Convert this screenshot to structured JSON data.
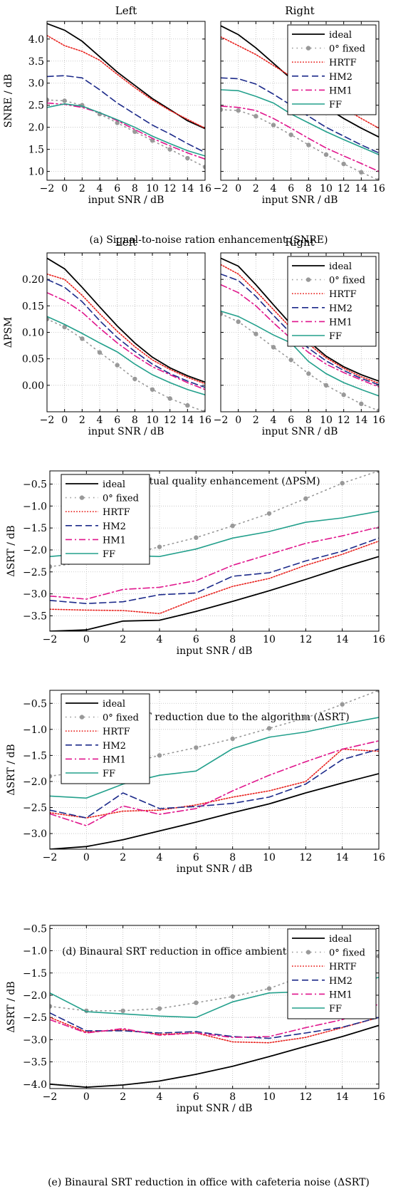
{
  "figure": {
    "captions": [
      "(a)  Signal-to-noise ration enhancement (SNRE)",
      "(b)  Perceptual quality enhancement (ΔPSM)",
      "(c)  Binaural SRT reduction due to the algorithm (ΔSRT)",
      "(d)  Binaural SRT reduction in office ambient noise (ΔSRT)",
      "(e)  Binaural SRT reduction in office with cafeteria noise (ΔSRT)"
    ]
  },
  "series_styles": [
    {
      "name": "ideal",
      "color": "#000000",
      "dash": "solid",
      "marker": false
    },
    {
      "name": "0° fixed",
      "color": "#999999",
      "dash": "dot",
      "marker": true
    },
    {
      "name": "HRTF",
      "color": "#e8201c",
      "dash": "dense-dot",
      "marker": false
    },
    {
      "name": "HM2",
      "color": "#1c2a8a",
      "dash": "dash",
      "marker": false
    },
    {
      "name": "HM1",
      "color": "#e0158c",
      "dash": "dashdot",
      "marker": false
    },
    {
      "name": "FF",
      "color": "#23a08c",
      "dash": "solid",
      "marker": false
    }
  ],
  "chart_data": [
    {
      "type": "line",
      "panel": "a-left",
      "title": "Left",
      "xlabel": "input SNR / dB",
      "ylabel": "SNRE / dB",
      "x": [
        -2,
        0,
        2,
        4,
        6,
        8,
        10,
        12,
        14,
        16
      ],
      "xlim": [
        -2,
        16
      ],
      "ylim": [
        0.8,
        4.4
      ],
      "xticks": [
        "−2",
        "0",
        "2",
        "4",
        "6",
        "8",
        "10",
        "12",
        "14",
        "16"
      ],
      "yticks": [
        "1.0",
        "1.5",
        "2.0",
        "2.5",
        "3.0",
        "3.5",
        "4.0"
      ],
      "yticks_values": [
        1.0,
        1.5,
        2.0,
        2.5,
        3.0,
        3.5,
        4.0
      ],
      "grid": true,
      "legend": null,
      "series": [
        {
          "name": "ideal",
          "values": [
            4.35,
            4.2,
            3.95,
            3.6,
            3.25,
            2.95,
            2.65,
            2.4,
            2.15,
            1.97
          ]
        },
        {
          "name": "0° fixed",
          "values": [
            2.62,
            2.6,
            2.5,
            2.3,
            2.1,
            1.9,
            1.7,
            1.5,
            1.3,
            1.1
          ]
        },
        {
          "name": "HRTF",
          "values": [
            4.08,
            3.85,
            3.72,
            3.52,
            3.2,
            2.9,
            2.62,
            2.38,
            2.18,
            1.98
          ]
        },
        {
          "name": "HM2",
          "values": [
            3.15,
            3.17,
            3.12,
            2.85,
            2.55,
            2.3,
            2.05,
            1.85,
            1.63,
            1.43
          ]
        },
        {
          "name": "HM1",
          "values": [
            2.55,
            2.52,
            2.45,
            2.33,
            2.15,
            1.95,
            1.75,
            1.58,
            1.42,
            1.28
          ]
        },
        {
          "name": "FF",
          "values": [
            2.45,
            2.53,
            2.48,
            2.33,
            2.17,
            2.0,
            1.8,
            1.63,
            1.47,
            1.35
          ]
        }
      ]
    },
    {
      "type": "line",
      "panel": "a-right",
      "title": "Right",
      "xlabel": "input SNR / dB",
      "ylabel": "",
      "x": [
        -2,
        0,
        2,
        4,
        6,
        8,
        10,
        12,
        14,
        16
      ],
      "xlim": [
        -2,
        16
      ],
      "ylim": [
        0.8,
        4.4
      ],
      "xticks": [
        "−2",
        "0",
        "2",
        "4",
        "6",
        "8",
        "10",
        "12",
        "14",
        "16"
      ],
      "yticks": [],
      "yticks_values": [
        1.0,
        1.5,
        2.0,
        2.5,
        3.0,
        3.5,
        4.0
      ],
      "grid": true,
      "legend": "top-right",
      "series": [
        {
          "name": "ideal",
          "values": [
            4.3,
            4.1,
            3.8,
            3.45,
            3.1,
            2.75,
            2.45,
            2.2,
            1.98,
            1.78
          ]
        },
        {
          "name": "0° fixed",
          "values": [
            2.4,
            2.38,
            2.25,
            2.05,
            1.83,
            1.6,
            1.38,
            1.17,
            0.98,
            0.8
          ]
        },
        {
          "name": "HRTF",
          "values": [
            4.05,
            3.85,
            3.65,
            3.4,
            3.15,
            2.9,
            2.65,
            2.43,
            2.2,
            1.98
          ]
        },
        {
          "name": "HM2",
          "values": [
            3.12,
            3.1,
            2.98,
            2.75,
            2.5,
            2.25,
            2.0,
            1.8,
            1.6,
            1.42
          ]
        },
        {
          "name": "HM1",
          "values": [
            2.48,
            2.45,
            2.38,
            2.2,
            1.98,
            1.75,
            1.53,
            1.35,
            1.18,
            1.0
          ]
        },
        {
          "name": "FF",
          "values": [
            2.85,
            2.83,
            2.7,
            2.55,
            2.3,
            2.1,
            1.9,
            1.72,
            1.55,
            1.38
          ]
        }
      ]
    },
    {
      "type": "line",
      "panel": "b-left",
      "title": "Left",
      "xlabel": "input SNR / dB",
      "ylabel": "ΔPSM",
      "x": [
        -2,
        0,
        2,
        4,
        6,
        8,
        10,
        12,
        14,
        16
      ],
      "xlim": [
        -2,
        16
      ],
      "ylim": [
        -0.05,
        0.25
      ],
      "xticks": [
        "−2",
        "0",
        "2",
        "4",
        "6",
        "8",
        "10",
        "12",
        "14",
        "16"
      ],
      "yticks": [
        "0.00",
        "0.05",
        "0.10",
        "0.15",
        "0.20"
      ],
      "yticks_values": [
        0.0,
        0.05,
        0.1,
        0.15,
        0.2
      ],
      "grid": true,
      "legend": null,
      "series": [
        {
          "name": "ideal",
          "values": [
            0.24,
            0.22,
            0.185,
            0.148,
            0.112,
            0.08,
            0.053,
            0.033,
            0.018,
            0.006
          ]
        },
        {
          "name": "0° fixed",
          "values": [
            0.125,
            0.11,
            0.088,
            0.062,
            0.038,
            0.012,
            -0.008,
            -0.025,
            -0.038,
            -0.05
          ]
        },
        {
          "name": "HRTF",
          "values": [
            0.21,
            0.2,
            0.17,
            0.135,
            0.102,
            0.073,
            0.048,
            0.03,
            0.015,
            0.003
          ]
        },
        {
          "name": "HM2",
          "values": [
            0.2,
            0.185,
            0.158,
            0.122,
            0.09,
            0.064,
            0.04,
            0.022,
            0.008,
            -0.004
          ]
        },
        {
          "name": "HM1",
          "values": [
            0.175,
            0.16,
            0.138,
            0.108,
            0.08,
            0.056,
            0.035,
            0.02,
            0.005,
            -0.008
          ]
        },
        {
          "name": "FF",
          "values": [
            0.13,
            0.115,
            0.098,
            0.08,
            0.063,
            0.04,
            0.02,
            0.005,
            -0.008,
            -0.018
          ]
        }
      ]
    },
    {
      "type": "line",
      "panel": "b-right",
      "title": "Right",
      "xlabel": "input SNR / dB",
      "ylabel": "",
      "x": [
        -2,
        0,
        2,
        4,
        6,
        8,
        10,
        12,
        14,
        16
      ],
      "xlim": [
        -2,
        16
      ],
      "ylim": [
        -0.05,
        0.25
      ],
      "xticks": [
        "−2",
        "0",
        "2",
        "4",
        "6",
        "8",
        "10",
        "12",
        "14",
        "16"
      ],
      "yticks": [],
      "yticks_values": [
        0.0,
        0.05,
        0.1,
        0.15,
        0.2
      ],
      "grid": true,
      "legend": "top-right",
      "series": [
        {
          "name": "ideal",
          "values": [
            0.24,
            0.225,
            0.19,
            0.152,
            0.115,
            0.083,
            0.055,
            0.035,
            0.02,
            0.008
          ]
        },
        {
          "name": "0° fixed",
          "values": [
            0.135,
            0.12,
            0.097,
            0.072,
            0.048,
            0.022,
            0.0,
            -0.018,
            -0.035,
            -0.048
          ]
        },
        {
          "name": "HRTF",
          "values": [
            0.228,
            0.21,
            0.178,
            0.143,
            0.108,
            0.078,
            0.052,
            0.032,
            0.016,
            0.004
          ]
        },
        {
          "name": "HM2",
          "values": [
            0.21,
            0.198,
            0.168,
            0.132,
            0.098,
            0.07,
            0.046,
            0.028,
            0.013,
            0.001
          ]
        },
        {
          "name": "HM1",
          "values": [
            0.19,
            0.175,
            0.15,
            0.118,
            0.088,
            0.062,
            0.04,
            0.024,
            0.01,
            -0.003
          ]
        },
        {
          "name": "FF",
          "values": [
            0.14,
            0.13,
            0.113,
            0.095,
            0.08,
            0.045,
            0.022,
            0.005,
            -0.008,
            -0.02
          ]
        }
      ]
    },
    {
      "type": "line",
      "panel": "c",
      "xlabel": "input SNR / dB",
      "ylabel": "ΔSRT / dB",
      "x": [
        -2,
        0,
        2,
        4,
        6,
        8,
        10,
        12,
        14,
        16
      ],
      "xlim": [
        -2,
        16
      ],
      "ylim": [
        -3.85,
        -0.2
      ],
      "xticks": [
        "−2",
        "0",
        "2",
        "4",
        "6",
        "8",
        "10",
        "12",
        "14",
        "16"
      ],
      "yticks": [
        "−3.5",
        "−3.0",
        "−2.5",
        "−2.0",
        "−1.5",
        "−1.0",
        "−0.5"
      ],
      "yticks_values": [
        -3.5,
        -3.0,
        -2.5,
        -2.0,
        -1.5,
        -1.0,
        -0.5
      ],
      "grid": true,
      "legend": "top-left",
      "series": [
        {
          "name": "ideal",
          "values": [
            -3.85,
            -3.82,
            -3.62,
            -3.6,
            -3.4,
            -3.17,
            -2.93,
            -2.67,
            -2.4,
            -2.15
          ]
        },
        {
          "name": "0° fixed",
          "values": [
            -2.38,
            -2.28,
            -2.13,
            -1.93,
            -1.72,
            -1.45,
            -1.17,
            -0.83,
            -0.48,
            -0.2
          ]
        },
        {
          "name": "HRTF",
          "values": [
            -3.35,
            -3.37,
            -3.38,
            -3.45,
            -3.12,
            -2.83,
            -2.65,
            -2.35,
            -2.1,
            -1.8
          ]
        },
        {
          "name": "HM2",
          "values": [
            -3.15,
            -3.22,
            -3.18,
            -3.02,
            -2.98,
            -2.6,
            -2.52,
            -2.25,
            -2.03,
            -1.73
          ]
        },
        {
          "name": "HM1",
          "values": [
            -3.05,
            -3.12,
            -2.9,
            -2.85,
            -2.7,
            -2.35,
            -2.1,
            -1.85,
            -1.68,
            -1.48
          ]
        },
        {
          "name": "FF",
          "values": [
            -2.15,
            -2.08,
            -2.12,
            -2.15,
            -1.98,
            -1.73,
            -1.58,
            -1.37,
            -1.27,
            -1.12
          ]
        }
      ]
    },
    {
      "type": "line",
      "panel": "d",
      "xlabel": "input SNR / dB",
      "ylabel": "ΔSRT / dB",
      "x": [
        -2,
        0,
        2,
        4,
        6,
        8,
        10,
        12,
        14,
        16
      ],
      "xlim": [
        -2,
        16
      ],
      "ylim": [
        -3.3,
        -0.25
      ],
      "xticks": [
        "−2",
        "0",
        "2",
        "4",
        "6",
        "8",
        "10",
        "12",
        "14",
        "16"
      ],
      "yticks": [
        "−3.0",
        "−2.5",
        "−2.0",
        "−1.5",
        "−1.0",
        "−0.5"
      ],
      "yticks_values": [
        -3.0,
        -2.5,
        -2.0,
        -1.5,
        -1.0,
        -0.5
      ],
      "grid": true,
      "legend": "top-left",
      "series": [
        {
          "name": "ideal",
          "values": [
            -3.3,
            -3.25,
            -3.12,
            -2.95,
            -2.78,
            -2.6,
            -2.43,
            -2.22,
            -2.03,
            -1.85
          ]
        },
        {
          "name": "0° fixed",
          "values": [
            -1.9,
            -1.8,
            -1.67,
            -1.5,
            -1.35,
            -1.18,
            -0.98,
            -0.78,
            -0.52,
            -0.25
          ]
        },
        {
          "name": "HRTF",
          "values": [
            -2.6,
            -2.7,
            -2.57,
            -2.55,
            -2.45,
            -2.3,
            -2.18,
            -2.0,
            -1.38,
            -1.42
          ]
        },
        {
          "name": "HM2",
          "values": [
            -2.55,
            -2.7,
            -2.22,
            -2.52,
            -2.48,
            -2.42,
            -2.3,
            -2.05,
            -1.58,
            -1.38
          ]
        },
        {
          "name": "HM1",
          "values": [
            -2.62,
            -2.85,
            -2.47,
            -2.63,
            -2.52,
            -2.18,
            -1.88,
            -1.62,
            -1.38,
            -1.22
          ]
        },
        {
          "name": "FF",
          "values": [
            -2.28,
            -2.32,
            -2.05,
            -1.88,
            -1.8,
            -1.37,
            -1.15,
            -1.05,
            -0.9,
            -0.77
          ]
        }
      ]
    },
    {
      "type": "line",
      "panel": "e",
      "xlabel": "input SNR / dB",
      "ylabel": "ΔSRT / dB",
      "x": [
        -2,
        0,
        2,
        4,
        6,
        8,
        10,
        12,
        14,
        16
      ],
      "xlim": [
        -2,
        16
      ],
      "ylim": [
        -4.1,
        -0.43
      ],
      "xticks": [
        "−2",
        "0",
        "2",
        "4",
        "6",
        "8",
        "10",
        "12",
        "14",
        "16"
      ],
      "yticks": [
        "−4.0",
        "−3.5",
        "−3.0",
        "−2.5",
        "−2.0",
        "−1.5",
        "−1.0",
        "−0.5"
      ],
      "yticks_values": [
        -4.0,
        -3.5,
        -3.0,
        -2.5,
        -2.0,
        -1.5,
        -1.0,
        -0.5
      ],
      "grid": true,
      "legend": "top-right",
      "series": [
        {
          "name": "ideal",
          "values": [
            -4.0,
            -4.07,
            -4.02,
            -3.93,
            -3.78,
            -3.6,
            -3.38,
            -3.15,
            -2.93,
            -2.68
          ]
        },
        {
          "name": "0° fixed",
          "values": [
            -2.25,
            -2.35,
            -2.35,
            -2.3,
            -2.17,
            -2.03,
            -1.85,
            -1.55,
            -1.38,
            -1.12
          ]
        },
        {
          "name": "HRTF",
          "values": [
            -2.5,
            -2.83,
            -2.78,
            -2.88,
            -2.85,
            -3.05,
            -3.07,
            -2.95,
            -2.73,
            -2.5
          ]
        },
        {
          "name": "HM2",
          "values": [
            -2.4,
            -2.8,
            -2.8,
            -2.85,
            -2.82,
            -2.93,
            -2.97,
            -2.85,
            -2.72,
            -2.5
          ]
        },
        {
          "name": "HM1",
          "values": [
            -2.55,
            -2.85,
            -2.75,
            -2.9,
            -2.85,
            -2.95,
            -2.93,
            -2.73,
            -2.55,
            -2.2
          ]
        },
        {
          "name": "FF",
          "values": [
            -1.95,
            -2.37,
            -2.42,
            -2.47,
            -2.5,
            -2.15,
            -1.95,
            -1.92,
            -1.75,
            -1.6
          ]
        }
      ]
    }
  ]
}
